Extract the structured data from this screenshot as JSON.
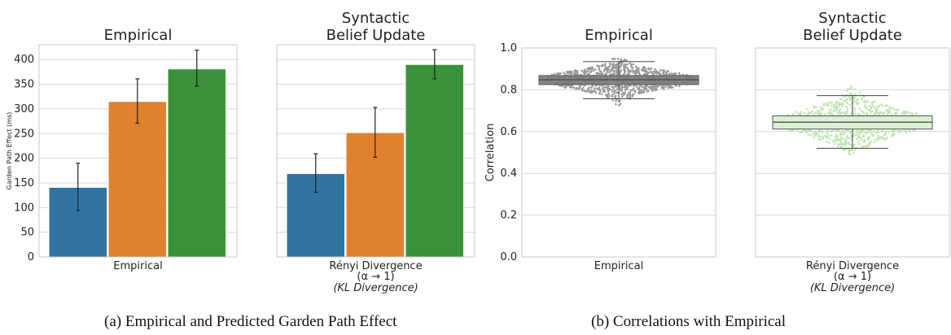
{
  "captions": {
    "a": "(a) Empirical and Predicted Garden Path Effect",
    "b": "(b) Correlations with Empirical"
  },
  "chart_data": [
    {
      "type": "bar",
      "panel": "a-left",
      "title": "Empirical",
      "ylabel": "Garden Path Effect (ms)",
      "ylim": [
        0,
        430
      ],
      "yticks": [
        0,
        50,
        100,
        150,
        200,
        250,
        300,
        350,
        400
      ],
      "grid": true,
      "xtick": "Empirical",
      "series": [
        {
          "color": "#3274a1",
          "value": 141,
          "err_low": 94,
          "err_high": 190
        },
        {
          "color": "#e1812c",
          "value": 315,
          "err_low": 271,
          "err_high": 361
        },
        {
          "color": "#3a923a",
          "value": 381,
          "err_low": 346,
          "err_high": 419
        }
      ]
    },
    {
      "type": "bar",
      "panel": "a-right",
      "title_lines": [
        "Syntactic",
        "Belief Update"
      ],
      "ylim": [
        0,
        430
      ],
      "grid": true,
      "xtick_lines": [
        "Rényi Divergence",
        "(α → 1)",
        "(KL Divergence)"
      ],
      "series": [
        {
          "color": "#3274a1",
          "value": 169,
          "err_low": 131,
          "err_high": 209
        },
        {
          "color": "#e1812c",
          "value": 252,
          "err_low": 202,
          "err_high": 303
        },
        {
          "color": "#3a923a",
          "value": 390,
          "err_low": 361,
          "err_high": 420
        }
      ]
    },
    {
      "type": "box",
      "panel": "b-left",
      "title": "Empirical",
      "ylabel": "Correlation",
      "ylim": [
        0.0,
        1.0
      ],
      "yticks": [
        "0.0",
        "0.2",
        "0.4",
        "0.6",
        "0.8",
        "1.0"
      ],
      "grid": true,
      "xtick": "Empirical",
      "box": {
        "q1": 0.825,
        "median": 0.848,
        "q3": 0.868,
        "whisker_low": 0.757,
        "whisker_high": 0.935,
        "min": 0.66,
        "max": 0.948
      },
      "box_color": "#7a7a7a",
      "point_color": "#9a9a9a"
    },
    {
      "type": "box",
      "panel": "b-right",
      "title_lines": [
        "Syntactic",
        "Belief Update"
      ],
      "ylim": [
        0.0,
        1.0
      ],
      "grid": true,
      "xtick_lines": [
        "Rényi Divergence",
        "(α → 1)",
        "(KL Divergence)"
      ],
      "box": {
        "q1": 0.612,
        "median": 0.645,
        "q3": 0.675,
        "whisker_low": 0.52,
        "whisker_high": 0.772,
        "min": 0.39,
        "max": 0.815
      },
      "box_color": "#dcefd4",
      "point_color": "#bfe6b3"
    }
  ]
}
